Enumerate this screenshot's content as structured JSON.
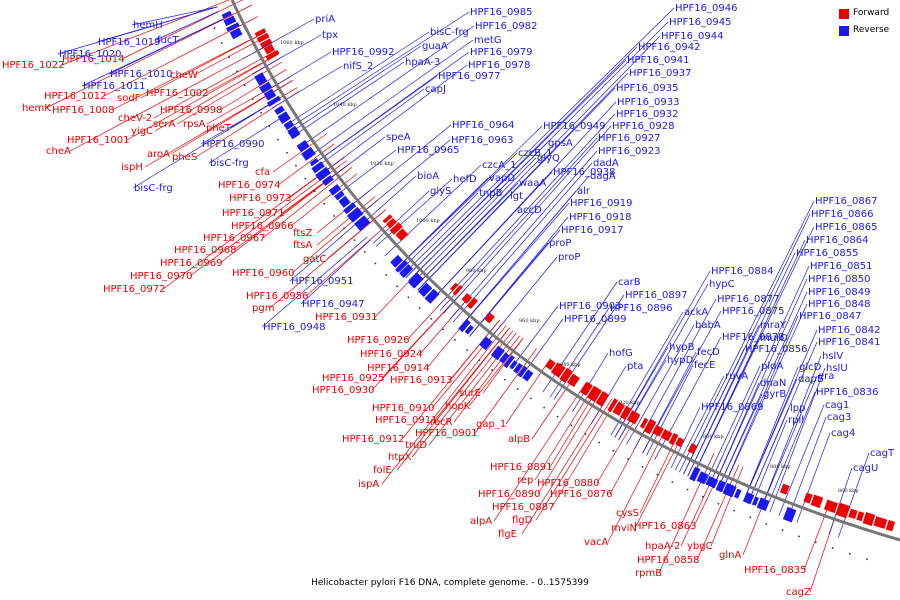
{
  "caption": "Helicobacter pylori F16 DNA, complete genome. - 0..1575399",
  "legend": {
    "forward": {
      "label": "Forward",
      "color": "#ee0000"
    },
    "reverse": {
      "label": "Reverse",
      "color": "#1a1aee"
    }
  },
  "colors": {
    "forward": "#ee0000",
    "reverse": "#1a1aee",
    "backbone": "#777777"
  },
  "ticks": [
    "1060 kbp",
    "1040 kbp",
    "1020 kbp",
    "1000 kbp",
    "980 kbp",
    "960 kbp",
    "940 kbp",
    "920 kbp",
    "900 kbp",
    "880 kbp",
    "860 kbp"
  ],
  "forward_labels": [
    "HPF16_1022",
    "HPF16_1014",
    "cheW",
    "HPF16_1002",
    "sodF",
    "HPF16_1012",
    "HPF16_1008",
    "hemK",
    "cheV-2",
    "serA",
    "HPF16_0998",
    "rpsA",
    "yigC",
    "pheT",
    "HPF16_1001",
    "cheA",
    "aroA",
    "ispH",
    "pheS",
    "cfa",
    "HPF16_0974",
    "HPF16_0973",
    "HPF16_0971",
    "HPF16_0966",
    "HPF16_0967",
    "HPF16_0968",
    "HPF16_0969",
    "HPF16_0970",
    "HPF16_0972",
    "ftsZ",
    "ftsA",
    "gatC",
    "HPF16_0960",
    "HPF16_0956",
    "pgm",
    "HPF16_0931",
    "HPF16_0926",
    "HPF16_0924",
    "HPF16_0914",
    "HPF16_0925",
    "HPF16_0913",
    "HPF16_0930",
    "surE",
    "hopK",
    "HPF16_0910",
    "HPF16_0911",
    "recR",
    "HPF16_0901",
    "HPF16_0912",
    "truD",
    "htpX",
    "folE",
    "ispA",
    "gap_1",
    "alpB",
    "HPF16_0891",
    "rep",
    "HPF16_0890",
    "HPF16_0887",
    "alpA",
    "flgD",
    "flgE",
    "HPF16_0880",
    "HPF16_0876",
    "cysS",
    "mviN",
    "vacA",
    "HPF16_0863",
    "hpaA-2",
    "ybgC",
    "HPF16_0858",
    "rpmB",
    "glnA",
    "HPF16_0835",
    "cagZ"
  ],
  "reverse_labels": [
    "hemH",
    "fucT",
    "HPF16_1019",
    "HPF16_1020",
    "HPF16_1010",
    "HPF16_1011",
    "priA",
    "tpx",
    "HPF16_0985",
    "HPF16_0982",
    "bisC-frg",
    "metG",
    "guaA",
    "HPF16_0979",
    "HPF16_0992",
    "nifS_2",
    "hpaA-3",
    "HPF16_0978",
    "HPF16_0977",
    "capJ",
    "HPF16_0946",
    "HPF16_0945",
    "HPF16_0944",
    "HPF16_0942",
    "HPF16_0941",
    "HPF16_0937",
    "HPF16_0935",
    "HPF16_0933",
    "HPF16_0932",
    "HPF16_0928",
    "HPF16_0927",
    "HPF16_0923",
    "speA",
    "HPF16_0964",
    "HPF16_0963",
    "HPF16_0965",
    "HPF16_0990",
    "bisC-frg",
    "bisC-frg",
    "HPF16_0949",
    "gpsA",
    "czcB_1",
    "glyQ",
    "czcA_1",
    "hefD",
    "vapD",
    "HPF16_0938",
    "dadA",
    "dagA",
    "bioA",
    "glyS",
    "tnpB",
    "waaA",
    "lgt",
    "alr",
    "accD",
    "HPF16_0919",
    "HPF16_0918",
    "HPF16_0917",
    "proP",
    "proP",
    "HPF16_0951",
    "HPF16_0947",
    "HPF16_0948",
    "carB",
    "HPF16_0903",
    "HPF16_0897",
    "HPF16_0896",
    "HPF16_0899",
    "hofG",
    "pta",
    "HPF16_0884",
    "hypC",
    "ackA",
    "HPF16_0877",
    "HPF16_0875",
    "babA",
    "HPF16_0878",
    "hypB",
    "fecD",
    "hypD",
    "fecE",
    "mraY",
    "murD",
    "HPF16_0856",
    "pldA",
    "ruvA",
    "dnaN",
    "gyrB",
    "HPF16_0869",
    "lpp",
    "rpll",
    "HPF16_0867",
    "HPF16_0866",
    "HPF16_0865",
    "HPF16_0864",
    "HPF16_0855",
    "HPF16_0851",
    "HPF16_0850",
    "HPF16_0849",
    "HPF16_0848",
    "HPF16_0847",
    "HPF16_0842",
    "HPF16_0841",
    "hslV",
    "hslU",
    "glcD",
    "dapB",
    "era",
    "HPF16_0836",
    "cag1",
    "cag3",
    "cag4",
    "cagT",
    "cagU"
  ]
}
